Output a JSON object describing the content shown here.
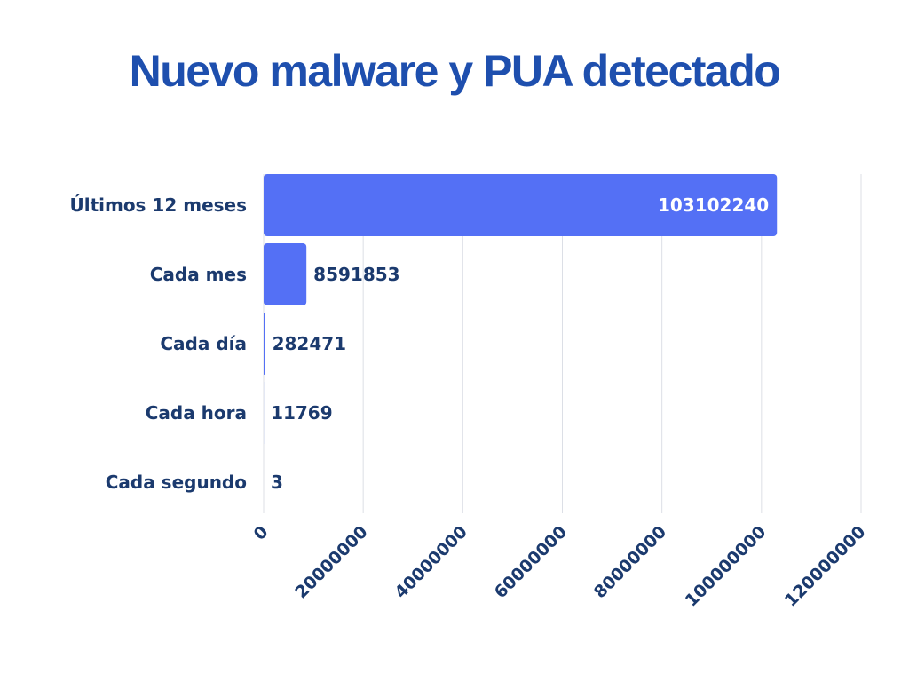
{
  "chart_data": {
    "type": "bar",
    "orientation": "horizontal",
    "title": "Nuevo malware y PUA detectado",
    "categories": [
      "Últimos 12 meses",
      "Cada mes",
      "Cada día",
      "Cada hora",
      "Cada segundo"
    ],
    "values": [
      103102240,
      8591853,
      282471,
      11769,
      3
    ],
    "value_labels": [
      "103102240",
      "8591853",
      "282471",
      "11769",
      "3"
    ],
    "xlim": [
      0,
      120000000
    ],
    "x_ticks": [
      "0",
      "20000000",
      "40000000",
      "60000000",
      "80000000",
      "100000000",
      "120000000"
    ],
    "grid": "vertical",
    "legend": "none",
    "bar_color": "#5470f5",
    "text_color": "#1b3a6e",
    "title_color": "#1e4fae",
    "inside_label_color": "#ffffff"
  }
}
